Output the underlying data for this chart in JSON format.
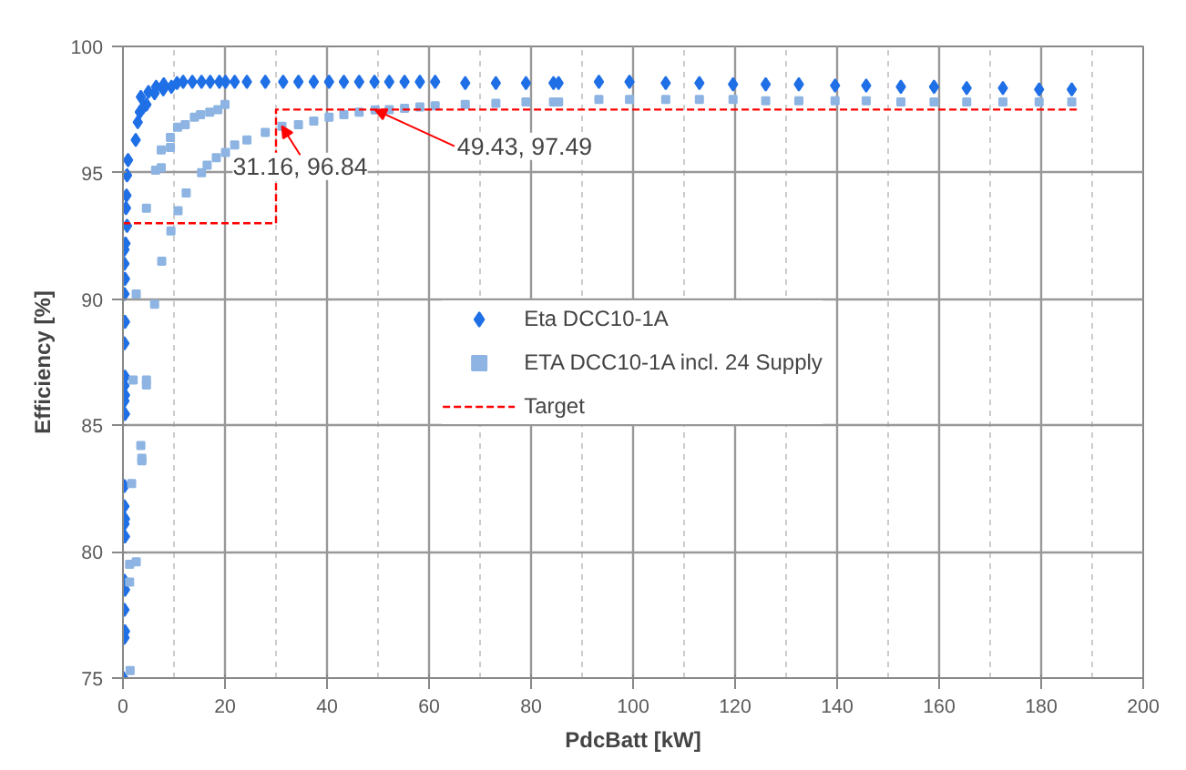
{
  "chart_data": {
    "type": "scatter",
    "xlabel": "PdcBatt [kW]",
    "ylabel": "Efficiency [%]",
    "xlim": [
      0,
      200
    ],
    "xticks": [
      0,
      20,
      40,
      60,
      80,
      100,
      120,
      140,
      160,
      180,
      200
    ],
    "ylim": [
      75,
      100
    ],
    "yticks": [
      75,
      80,
      85,
      90,
      95,
      100
    ],
    "grid": true,
    "legend": "center",
    "series": [
      {
        "name": "Eta DCC10-1A",
        "color": "#1f6fe6",
        "marker": "diamond",
        "x": [
          0.1,
          0.3,
          0.4,
          0.3,
          0.4,
          0.3,
          0.4,
          0.3,
          0.4,
          0.3,
          0.3,
          0.4,
          0.3,
          0.4,
          0.3,
          0.4,
          0.3,
          0.4,
          0.3,
          0.4,
          0.3,
          0.3,
          0.5,
          0.8,
          0.6,
          0.7,
          0.8,
          1.0,
          2.5,
          2.9,
          3.3,
          4.0,
          4.6,
          6.2,
          7.9,
          9.5,
          10.6,
          11.8,
          13.6,
          15.4,
          17.1,
          18.9,
          20.1,
          21.9,
          24.3,
          27.9,
          31.4,
          34.4,
          37.4,
          40.4,
          43.3,
          46.3,
          49.3,
          52.2,
          55.2,
          58.2,
          61.2,
          67.1,
          73.1,
          79.0,
          84.4,
          85.4,
          93.3,
          99.3,
          106.4,
          113.0,
          119.6,
          126.0,
          132.5,
          139.6,
          145.7,
          152.5,
          159.0,
          165.4,
          172.5,
          179.6,
          186.0,
          3.5,
          5.0,
          6.5,
          8.0
        ],
        "values": [
          75.0,
          76.6,
          76.85,
          77.7,
          78.5,
          78.85,
          80.6,
          81.1,
          81.3,
          81.8,
          82.6,
          85.45,
          85.97,
          86.2,
          86.57,
          86.93,
          88.25,
          89.1,
          90.2,
          90.8,
          91.4,
          91.96,
          92.2,
          92.9,
          93.6,
          94.1,
          94.9,
          95.5,
          96.3,
          97.0,
          97.4,
          97.6,
          97.7,
          98.15,
          98.3,
          98.4,
          98.55,
          98.6,
          98.6,
          98.6,
          98.6,
          98.6,
          98.6,
          98.6,
          98.6,
          98.6,
          98.6,
          98.6,
          98.6,
          98.6,
          98.6,
          98.6,
          98.6,
          98.6,
          98.6,
          98.6,
          98.6,
          98.55,
          98.55,
          98.55,
          98.55,
          98.55,
          98.6,
          98.6,
          98.55,
          98.55,
          98.5,
          98.5,
          98.5,
          98.45,
          98.45,
          98.4,
          98.4,
          98.35,
          98.35,
          98.3,
          98.3,
          98.0,
          98.2,
          98.4,
          98.5
        ]
      },
      {
        "name": "ETA DCC10-1A incl. 24 Supply",
        "color": "#8db4e2",
        "marker": "square",
        "x": [
          1.4,
          1.3,
          1.3,
          2.6,
          1.7,
          3.7,
          3.7,
          3.5,
          2.0,
          4.6,
          4.6,
          2.6,
          4.6,
          6.2,
          7.6,
          9.4,
          10.8,
          12.4,
          15.4,
          16.5,
          18.3,
          20.1,
          21.9,
          24.3,
          27.9,
          31.16,
          34.4,
          37.4,
          40.4,
          43.3,
          46.3,
          49.43,
          52.2,
          55.2,
          58.2,
          61.2,
          67.1,
          73.1,
          79.0,
          84.4,
          85.4,
          93.3,
          99.3,
          106.4,
          113.0,
          119.6,
          126.0,
          132.5,
          139.6,
          145.7,
          152.5,
          159.0,
          165.4,
          172.5,
          179.6,
          186.0,
          6.4,
          7.5,
          7.5,
          9.3,
          9.3,
          10.7,
          12.2,
          14.0,
          15.2,
          17.0,
          18.6,
          20.0
        ],
        "values": [
          75.3,
          78.8,
          79.5,
          79.6,
          82.7,
          83.6,
          83.7,
          84.2,
          86.8,
          86.8,
          86.6,
          90.2,
          93.6,
          89.8,
          91.5,
          92.7,
          93.5,
          94.2,
          95.0,
          95.3,
          95.6,
          95.8,
          96.1,
          96.3,
          96.6,
          96.84,
          96.9,
          97.05,
          97.2,
          97.3,
          97.4,
          97.49,
          97.5,
          97.55,
          97.6,
          97.65,
          97.7,
          97.75,
          97.8,
          97.8,
          97.8,
          97.9,
          97.9,
          97.9,
          97.9,
          97.9,
          97.85,
          97.85,
          97.85,
          97.85,
          97.8,
          97.8,
          97.8,
          97.8,
          97.8,
          97.8,
          95.1,
          95.2,
          95.9,
          96.0,
          96.4,
          96.8,
          96.9,
          97.2,
          97.3,
          97.4,
          97.5,
          97.7
        ]
      },
      {
        "name": "Target",
        "type": "line",
        "color": "#ff0000",
        "marker": "none",
        "line_style": "dashed",
        "x": [
          0,
          30,
          30,
          187
        ],
        "values": [
          93,
          93,
          97.5,
          97.5
        ]
      }
    ],
    "annotations": [
      {
        "text": "31.16, 96.84",
        "x": 31.16,
        "y": 96.84
      },
      {
        "text": "49.43, 97.49",
        "x": 49.43,
        "y": 97.49
      }
    ]
  }
}
